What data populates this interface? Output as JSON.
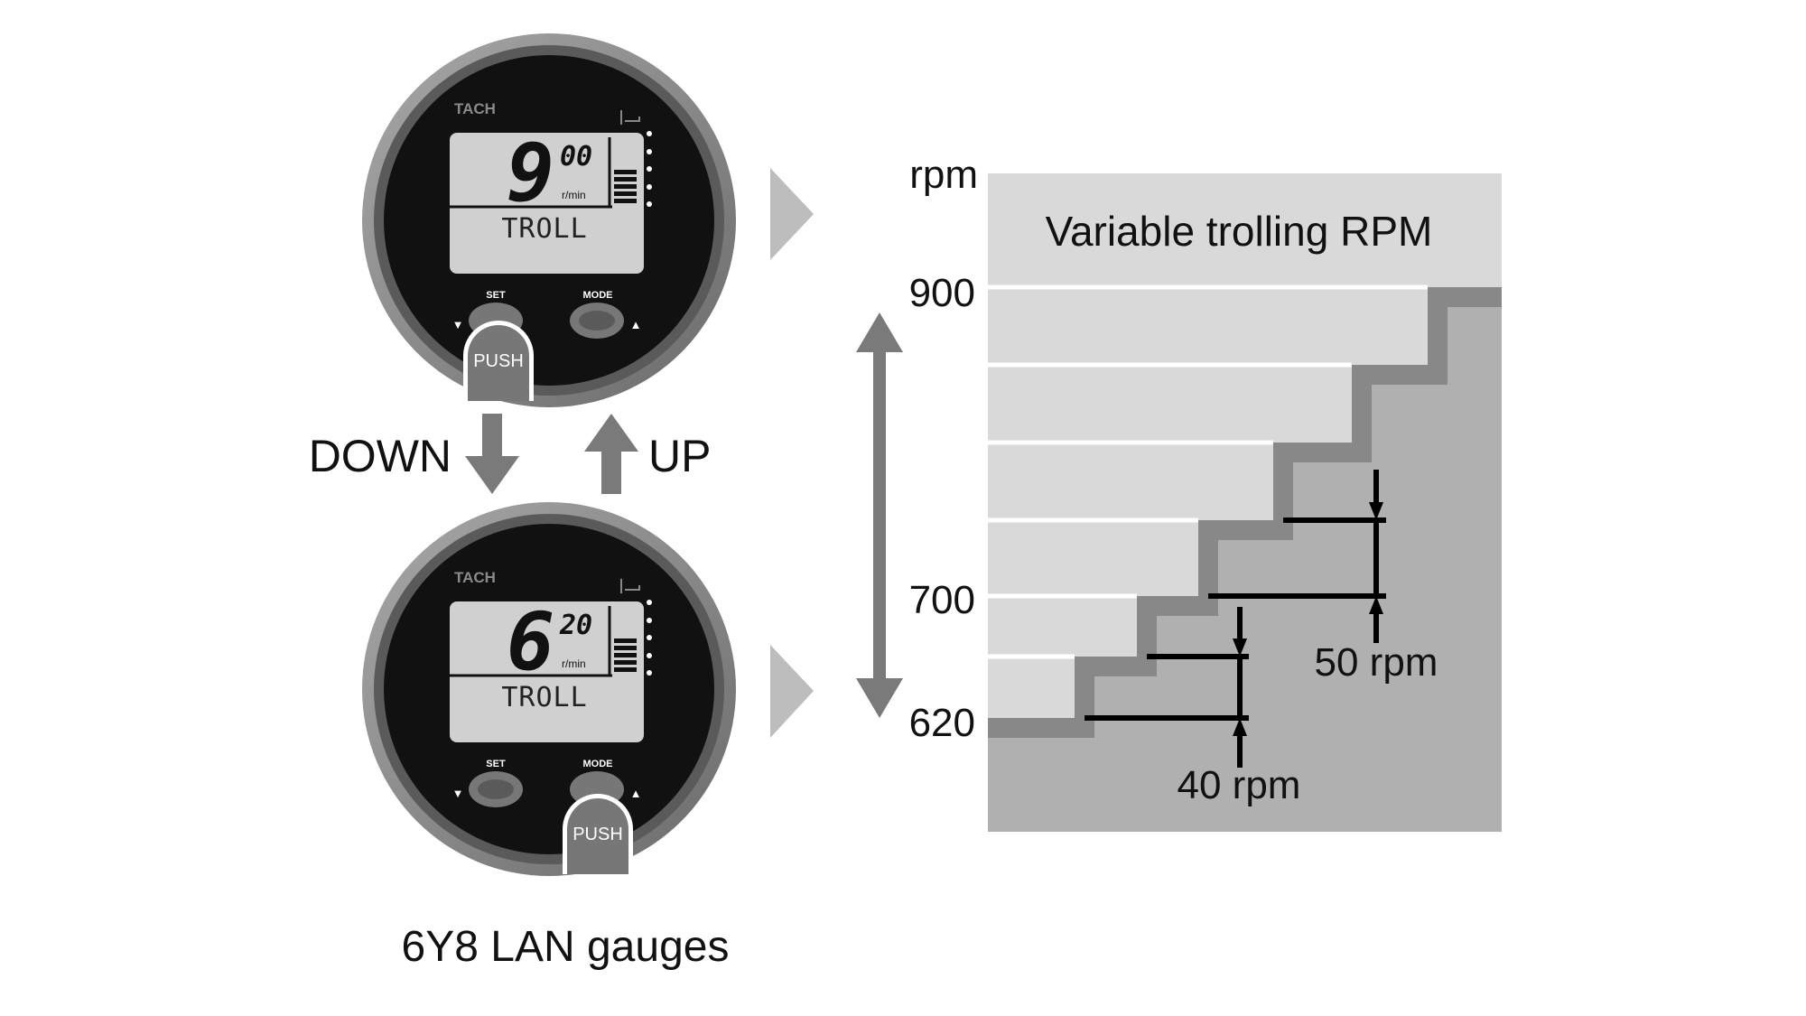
{
  "gauges": [
    {
      "brand": "TACH",
      "rpm_main": "9",
      "rpm_sub": "00",
      "unit": "r/min",
      "mode_text": "TROLL",
      "set_label": "SET",
      "mode_label": "MODE",
      "push_label": "PUSH",
      "pressed_button": "SET"
    },
    {
      "brand": "TACH",
      "rpm_main": "6",
      "rpm_sub": "20",
      "unit": "r/min",
      "mode_text": "TROLL",
      "set_label": "SET",
      "mode_label": "MODE",
      "push_label": "PUSH",
      "pressed_button": "MODE"
    }
  ],
  "labels": {
    "down": "DOWN",
    "up": "UP",
    "caption": "6Y8 LAN gauges"
  },
  "chart": {
    "title": "Variable trolling RPM",
    "axis_unit": "rpm",
    "ticks": [
      "900",
      "700",
      "620"
    ],
    "step_small": "40 rpm",
    "step_large": "50 rpm"
  },
  "colors": {
    "light": "#d9d9d9",
    "fill": "#b0b0b0",
    "band": "#888888",
    "arrow": "#7a7a7a"
  }
}
